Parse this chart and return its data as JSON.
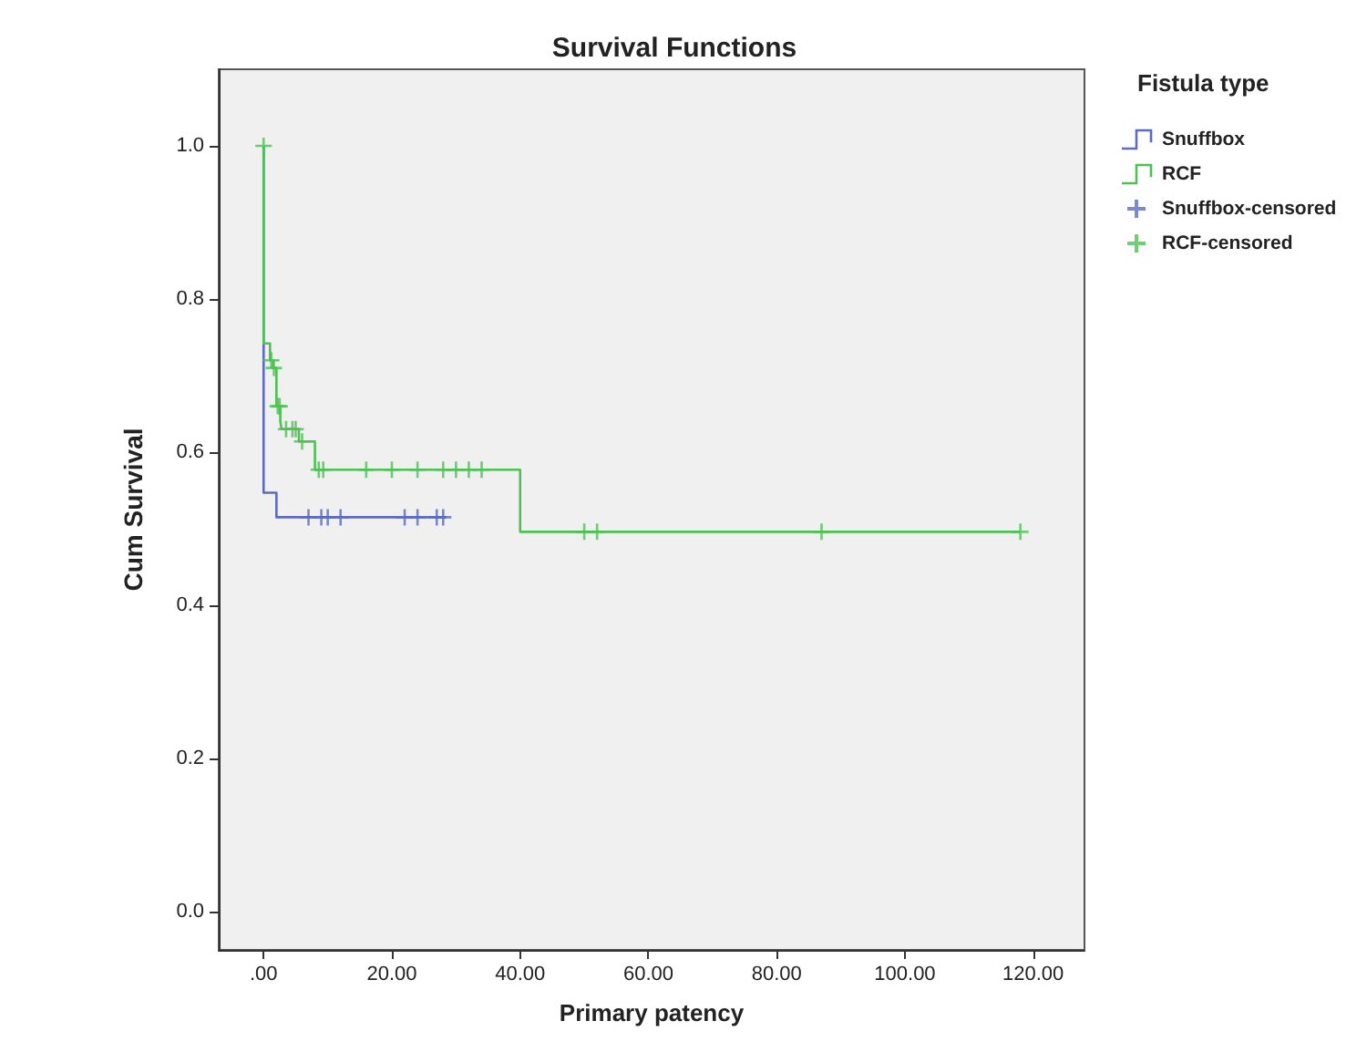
{
  "chart_data": {
    "type": "step",
    "title": "Survival Functions",
    "xlabel": "Primary patency",
    "ylabel": "Cum Survival",
    "legend_title": "Fistula type",
    "legend": "top right",
    "grid": false,
    "xlim": [
      -7,
      128
    ],
    "xticks": [
      {
        "value": 0,
        "label": ".00"
      },
      {
        "value": 20,
        "label": "20.00"
      },
      {
        "value": 40,
        "label": "40.00"
      },
      {
        "value": 60,
        "label": "60.00"
      },
      {
        "value": 80,
        "label": "80.00"
      },
      {
        "value": 100,
        "label": "100.00"
      },
      {
        "value": 120,
        "label": "120.00"
      }
    ],
    "ylim": [
      -0.05,
      1.1
    ],
    "yticks": [
      {
        "value": 0,
        "label": "0.0"
      },
      {
        "value": 0.2,
        "label": "0.2"
      },
      {
        "value": 0.4,
        "label": "0.4"
      },
      {
        "value": 0.6,
        "label": "0.6"
      },
      {
        "value": 0.8,
        "label": "0.8"
      },
      {
        "value": 1,
        "label": "1.0"
      }
    ],
    "series": [
      {
        "name": "Snuffbox",
        "color": "#5b6bbf",
        "x": [
          0,
          0,
          2,
          28.5
        ],
        "values": [
          1,
          0.547,
          0.515,
          0.515
        ]
      },
      {
        "name": "RCF",
        "color": "#4ec054",
        "x": [
          0,
          0,
          1,
          1.5,
          2,
          2.6,
          2.8,
          5.5,
          8,
          40,
          118
        ],
        "values": [
          1,
          0.742,
          0.72,
          0.71,
          0.66,
          0.64,
          0.63,
          0.614,
          0.577,
          0.496,
          0.496
        ]
      },
      {
        "name": "Snuffbox-censored",
        "type": "scatter",
        "marker": "cross",
        "color": "#5b6bbf",
        "x": [
          7,
          9,
          10,
          12,
          22,
          24,
          27,
          28
        ],
        "values": [
          0.515,
          0.515,
          0.515,
          0.515,
          0.515,
          0.515,
          0.515,
          0.515
        ]
      },
      {
        "name": "RCF-censored",
        "type": "scatter",
        "marker": "cross",
        "color": "#4ec054",
        "x": [
          0,
          1.2,
          1.6,
          2.2,
          2.5,
          3.5,
          4.5,
          5,
          6,
          8.6,
          9.3,
          16,
          20,
          24,
          28,
          30,
          32,
          34,
          50,
          52,
          87,
          118
        ],
        "values": [
          1,
          0.72,
          0.71,
          0.66,
          0.66,
          0.63,
          0.63,
          0.63,
          0.614,
          0.577,
          0.577,
          0.577,
          0.577,
          0.577,
          0.577,
          0.577,
          0.577,
          0.577,
          0.496,
          0.496,
          0.496,
          0.496
        ]
      }
    ]
  }
}
